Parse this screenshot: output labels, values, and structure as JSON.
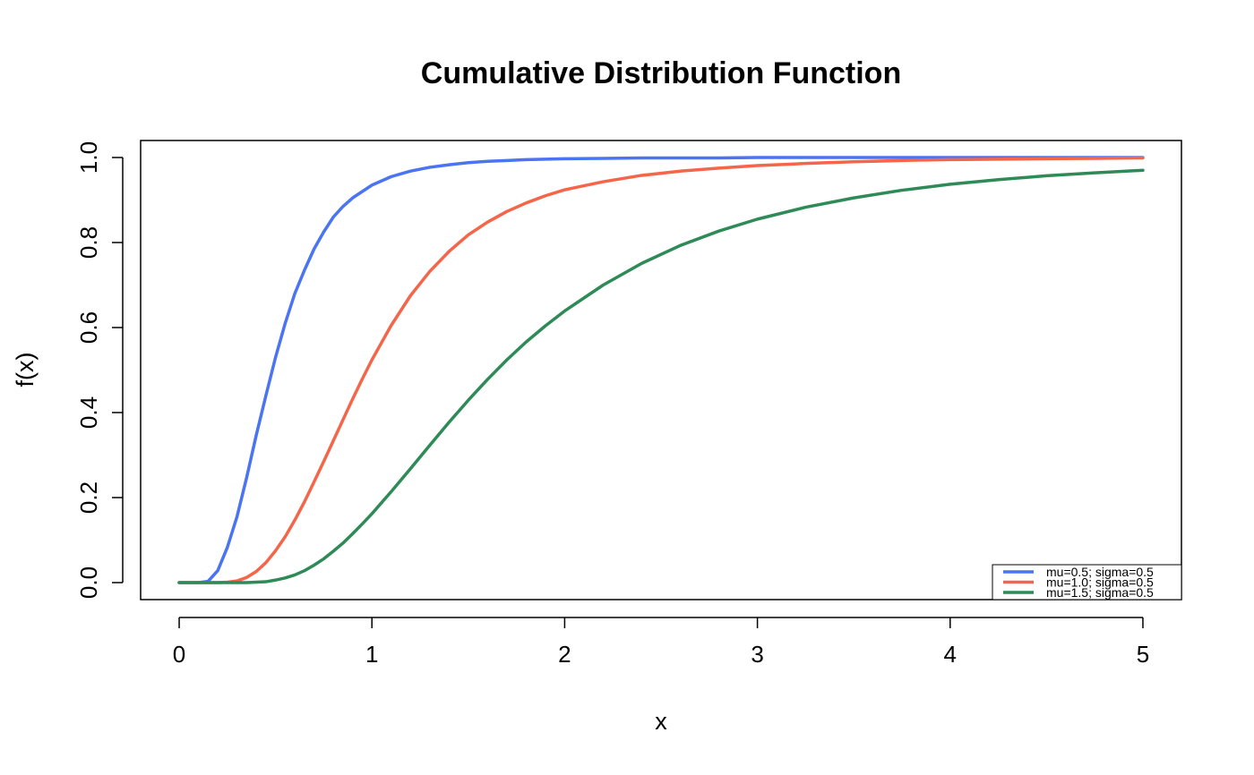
{
  "chart_data": {
    "type": "line",
    "title": "Cumulative Distribution Function",
    "xlabel": "x",
    "ylabel": "f(x)",
    "xlim": [
      -0.2,
      5.2
    ],
    "ylim": [
      -0.04,
      1.04
    ],
    "x_ticks": [
      0,
      1,
      2,
      3,
      4,
      5
    ],
    "x_tick_labels": [
      "0",
      "1",
      "2",
      "3",
      "4",
      "5"
    ],
    "y_ticks": [
      0,
      0.2,
      0.4,
      0.6,
      0.8,
      1.0
    ],
    "y_tick_labels": [
      "0.0",
      "0.2",
      "0.4",
      "0.6",
      "0.8",
      "1.0"
    ],
    "grid": false,
    "legend_position": "bottom-right",
    "x": [
      0.0,
      0.05,
      0.1,
      0.15,
      0.2,
      0.25,
      0.3,
      0.35,
      0.4,
      0.45,
      0.5,
      0.55,
      0.6,
      0.65,
      0.7,
      0.75,
      0.8,
      0.85,
      0.9,
      0.95,
      1.0,
      1.1,
      1.2,
      1.3,
      1.4,
      1.5,
      1.6,
      1.7,
      1.8,
      1.9,
      2.0,
      2.2,
      2.4,
      2.6,
      2.8,
      3.0,
      3.25,
      3.5,
      3.75,
      4.0,
      4.25,
      4.5,
      4.75,
      5.0
    ],
    "series": [
      {
        "name": "mu=0.5; sigma=0.5",
        "color": "#4a74f2",
        "values": [
          0.0,
          0.0,
          0.0,
          0.003,
          0.028,
          0.083,
          0.155,
          0.247,
          0.347,
          0.44,
          0.53,
          0.61,
          0.68,
          0.735,
          0.785,
          0.825,
          0.86,
          0.885,
          0.905,
          0.92,
          0.935,
          0.955,
          0.968,
          0.977,
          0.983,
          0.988,
          0.991,
          0.993,
          0.995,
          0.996,
          0.997,
          0.998,
          0.999,
          0.999,
          0.999,
          1.0,
          1.0,
          1.0,
          1.0,
          1.0,
          1.0,
          1.0,
          1.0,
          1.0
        ]
      },
      {
        "name": "mu=1.0; sigma=0.5",
        "color": "#f4664a",
        "values": [
          0.0,
          0.0,
          0.0,
          0.0,
          0.0,
          0.001,
          0.004,
          0.012,
          0.026,
          0.047,
          0.075,
          0.108,
          0.147,
          0.19,
          0.237,
          0.285,
          0.334,
          0.383,
          0.432,
          0.479,
          0.524,
          0.605,
          0.675,
          0.732,
          0.779,
          0.818,
          0.848,
          0.873,
          0.893,
          0.91,
          0.924,
          0.943,
          0.958,
          0.968,
          0.975,
          0.981,
          0.986,
          0.99,
          0.993,
          0.995,
          0.996,
          0.997,
          0.998,
          0.999
        ]
      },
      {
        "name": "mu=1.5; sigma=0.5",
        "color": "#2e8b57",
        "values": [
          0.0,
          0.0,
          0.0,
          0.0,
          0.0,
          0.0,
          0.0,
          0.0,
          0.001,
          0.002,
          0.006,
          0.011,
          0.018,
          0.028,
          0.041,
          0.056,
          0.074,
          0.093,
          0.115,
          0.138,
          0.162,
          0.214,
          0.268,
          0.323,
          0.377,
          0.429,
          0.478,
          0.524,
          0.566,
          0.604,
          0.639,
          0.7,
          0.751,
          0.793,
          0.827,
          0.855,
          0.883,
          0.905,
          0.923,
          0.937,
          0.948,
          0.957,
          0.964,
          0.97
        ]
      }
    ]
  }
}
